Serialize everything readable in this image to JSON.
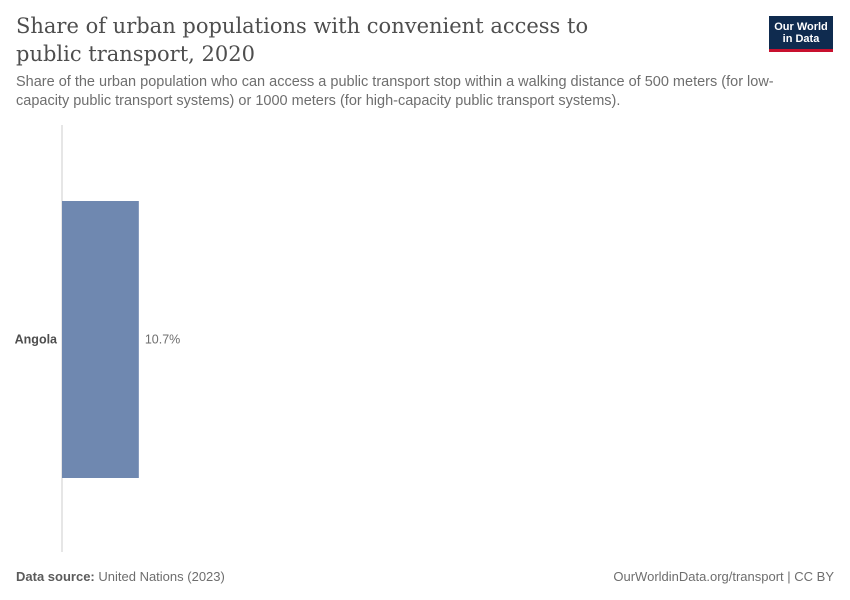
{
  "header": {
    "title": "Share of urban populations with convenient access to public transport, 2020",
    "subtitle": "Share of the urban population who can access a public transport stop within a walking distance of 500 meters (for low-capacity public transport systems) or 1000 meters (for high-capacity public transport systems).",
    "logo_line1": "Our World",
    "logo_line2": "in Data"
  },
  "footer": {
    "source_label": "Data source:",
    "source_value": "United Nations (2023)",
    "url": "OurWorldinData.org/transport | CC BY"
  },
  "colors": {
    "bar": "#6f88b0",
    "axis": "#cccccc",
    "label": "#4e4e4e",
    "value_label": "#6e6e6e"
  },
  "chart_data": {
    "type": "bar",
    "orientation": "horizontal",
    "categories": [
      "Angola"
    ],
    "values": [
      10.7
    ],
    "value_labels": [
      "10.7%"
    ],
    "unit": "%",
    "xlim": [
      0,
      100
    ],
    "grid": false,
    "legend": "none"
  }
}
